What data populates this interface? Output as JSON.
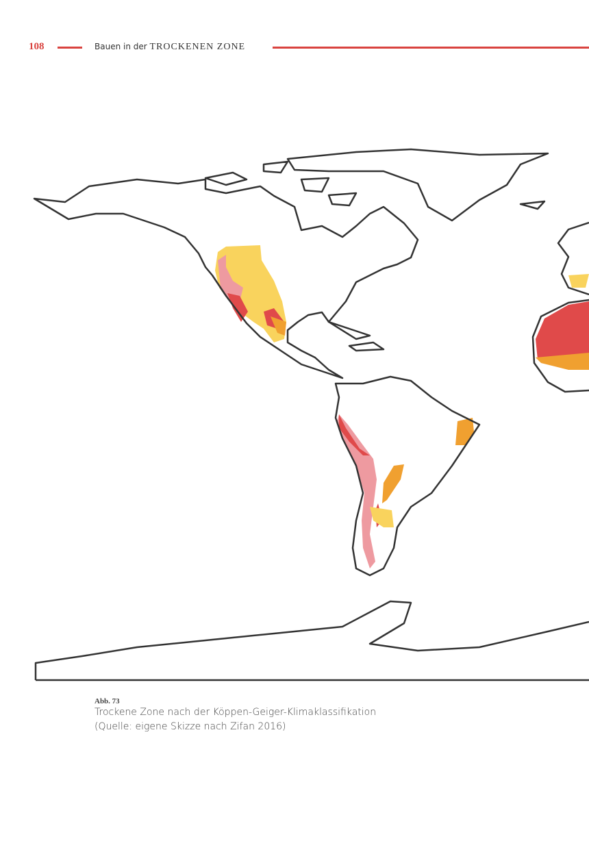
{
  "header": {
    "page_number": "108",
    "prefix": "Bauen in der",
    "title": "TROCKENEN ZONE"
  },
  "figure": {
    "label": "Abb. 73",
    "caption_lines": [
      "Trockene Zone nach der Köppen-Geiger-Klimaklassifikation",
      "(Quelle: eigene Skizze nach Zifan 2016)"
    ]
  }
}
